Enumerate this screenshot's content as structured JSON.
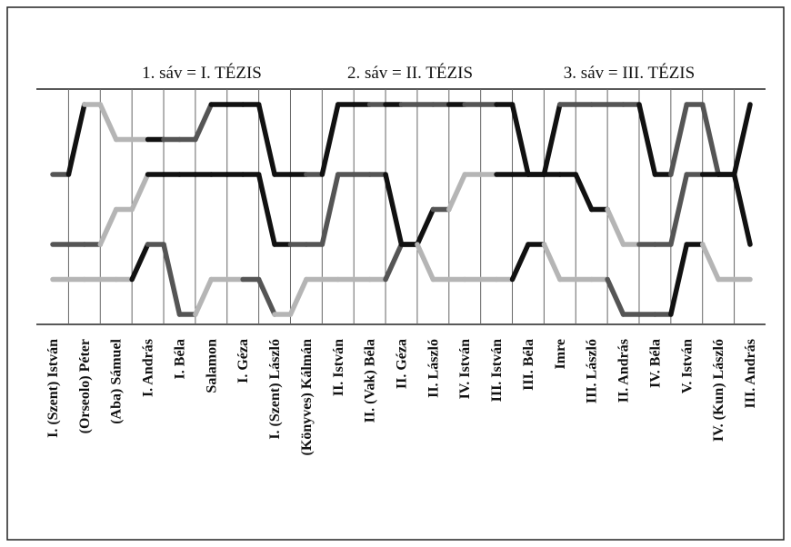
{
  "chart_data": {
    "type": "line",
    "band_labels": [
      "1. sáv = I. TÉZIS",
      "2. sáv = II. TÉZIS",
      "3. sáv = III. TÉZIS"
    ],
    "categories": [
      "I. (Szent) István",
      "(Orseolo) Péter",
      "(Aba) Sámuel",
      "I. András",
      "I. Béla",
      "Salamon",
      "I. Géza",
      "I. (Szent) László",
      "(Könyves) Kálmán",
      "II. István",
      "II. (Vak) Béla",
      "II. Géza",
      "II. László",
      "IV. István",
      "III. István",
      "III. Béla",
      "Imre",
      "III. László",
      "II. András",
      "IV. Béla",
      "V. István",
      "IV. (Kun) László",
      "III. András"
    ],
    "levels": [
      1,
      2,
      3,
      4,
      5,
      6,
      7
    ],
    "level_direction": "1 = top, 7 = bottom",
    "grid": true,
    "colors": {
      "black": "#111111",
      "dark_gray": "#555555",
      "light_gray": "#b5b5b5",
      "grid": "#666666",
      "frame": "#222222"
    },
    "series": [
      {
        "values": [
          3,
          1,
          2,
          2,
          2,
          1,
          1,
          3,
          3,
          1,
          1,
          1,
          1,
          1,
          1,
          3,
          1,
          1,
          1,
          3,
          1,
          3,
          1
        ],
        "segment_colors": [
          "dark_gray",
          "black",
          "light_gray",
          "light_gray",
          "light_gray",
          "light_gray",
          "black",
          "dark_gray",
          "dark_gray",
          "dark_gray",
          "black",
          "black",
          "black",
          "black",
          "black",
          "black",
          "dark_gray",
          "black",
          "black",
          "black",
          "dark_gray",
          "black",
          "dark_gray",
          "dark_gray",
          "dark_gray",
          "black",
          "dark_gray",
          "dark_gray",
          "black",
          "black",
          "black",
          "black",
          "dark_gray",
          "dark_gray",
          "dark_gray",
          "dark_gray",
          "dark_gray",
          "black",
          "black",
          "dark_gray",
          "dark_gray",
          "dark_gray",
          "black",
          "black"
        ]
      },
      {
        "values": [
          5,
          5,
          4,
          3,
          3,
          3,
          3,
          5,
          5,
          3,
          3,
          5,
          4,
          3,
          3,
          3,
          3,
          4,
          5,
          5,
          3,
          3,
          5
        ],
        "segment_colors": [
          "dark_gray",
          "dark_gray",
          "dark_gray",
          "light_gray",
          "light_gray",
          "light_gray",
          "black",
          "black",
          "black",
          "black",
          "black",
          "black",
          "black",
          "black",
          "black",
          "dark_gray",
          "dark_gray",
          "dark_gray",
          "dark_gray",
          "dark_gray",
          "dark_gray",
          "black",
          "black",
          "black",
          "dark_gray",
          "light_gray",
          "light_gray",
          "light_gray",
          "black",
          "black",
          "black",
          "black",
          "black",
          "black",
          "black",
          "light_gray",
          "light_gray",
          "dark_gray",
          "dark_gray",
          "dark_gray",
          "dark_gray",
          "black",
          "black",
          "black",
          "dark_gray"
        ]
      },
      {
        "values": [
          6,
          6,
          6,
          5,
          7,
          6,
          6,
          7,
          6,
          6,
          6,
          5,
          6,
          6,
          6,
          5,
          6,
          6,
          7,
          7,
          5,
          6,
          6
        ],
        "segment_colors": [
          "light_gray",
          "light_gray",
          "light_gray",
          "light_gray",
          "light_gray",
          "black",
          "dark_gray",
          "dark_gray",
          "dark_gray",
          "light_gray",
          "light_gray",
          "light_gray",
          "dark_gray",
          "dark_gray",
          "light_gray",
          "light_gray",
          "light_gray",
          "light_gray",
          "light_gray",
          "light_gray",
          "light_gray",
          "dark_gray",
          "black",
          "light_gray",
          "light_gray",
          "light_gray",
          "light_gray",
          "light_gray",
          "light_gray",
          "black",
          "black",
          "light_gray",
          "light_gray",
          "light_gray",
          "light_gray",
          "dark_gray",
          "dark_gray",
          "dark_gray",
          "dark_gray",
          "black",
          "black",
          "light_gray",
          "light_gray",
          "light_gray"
        ]
      }
    ]
  }
}
